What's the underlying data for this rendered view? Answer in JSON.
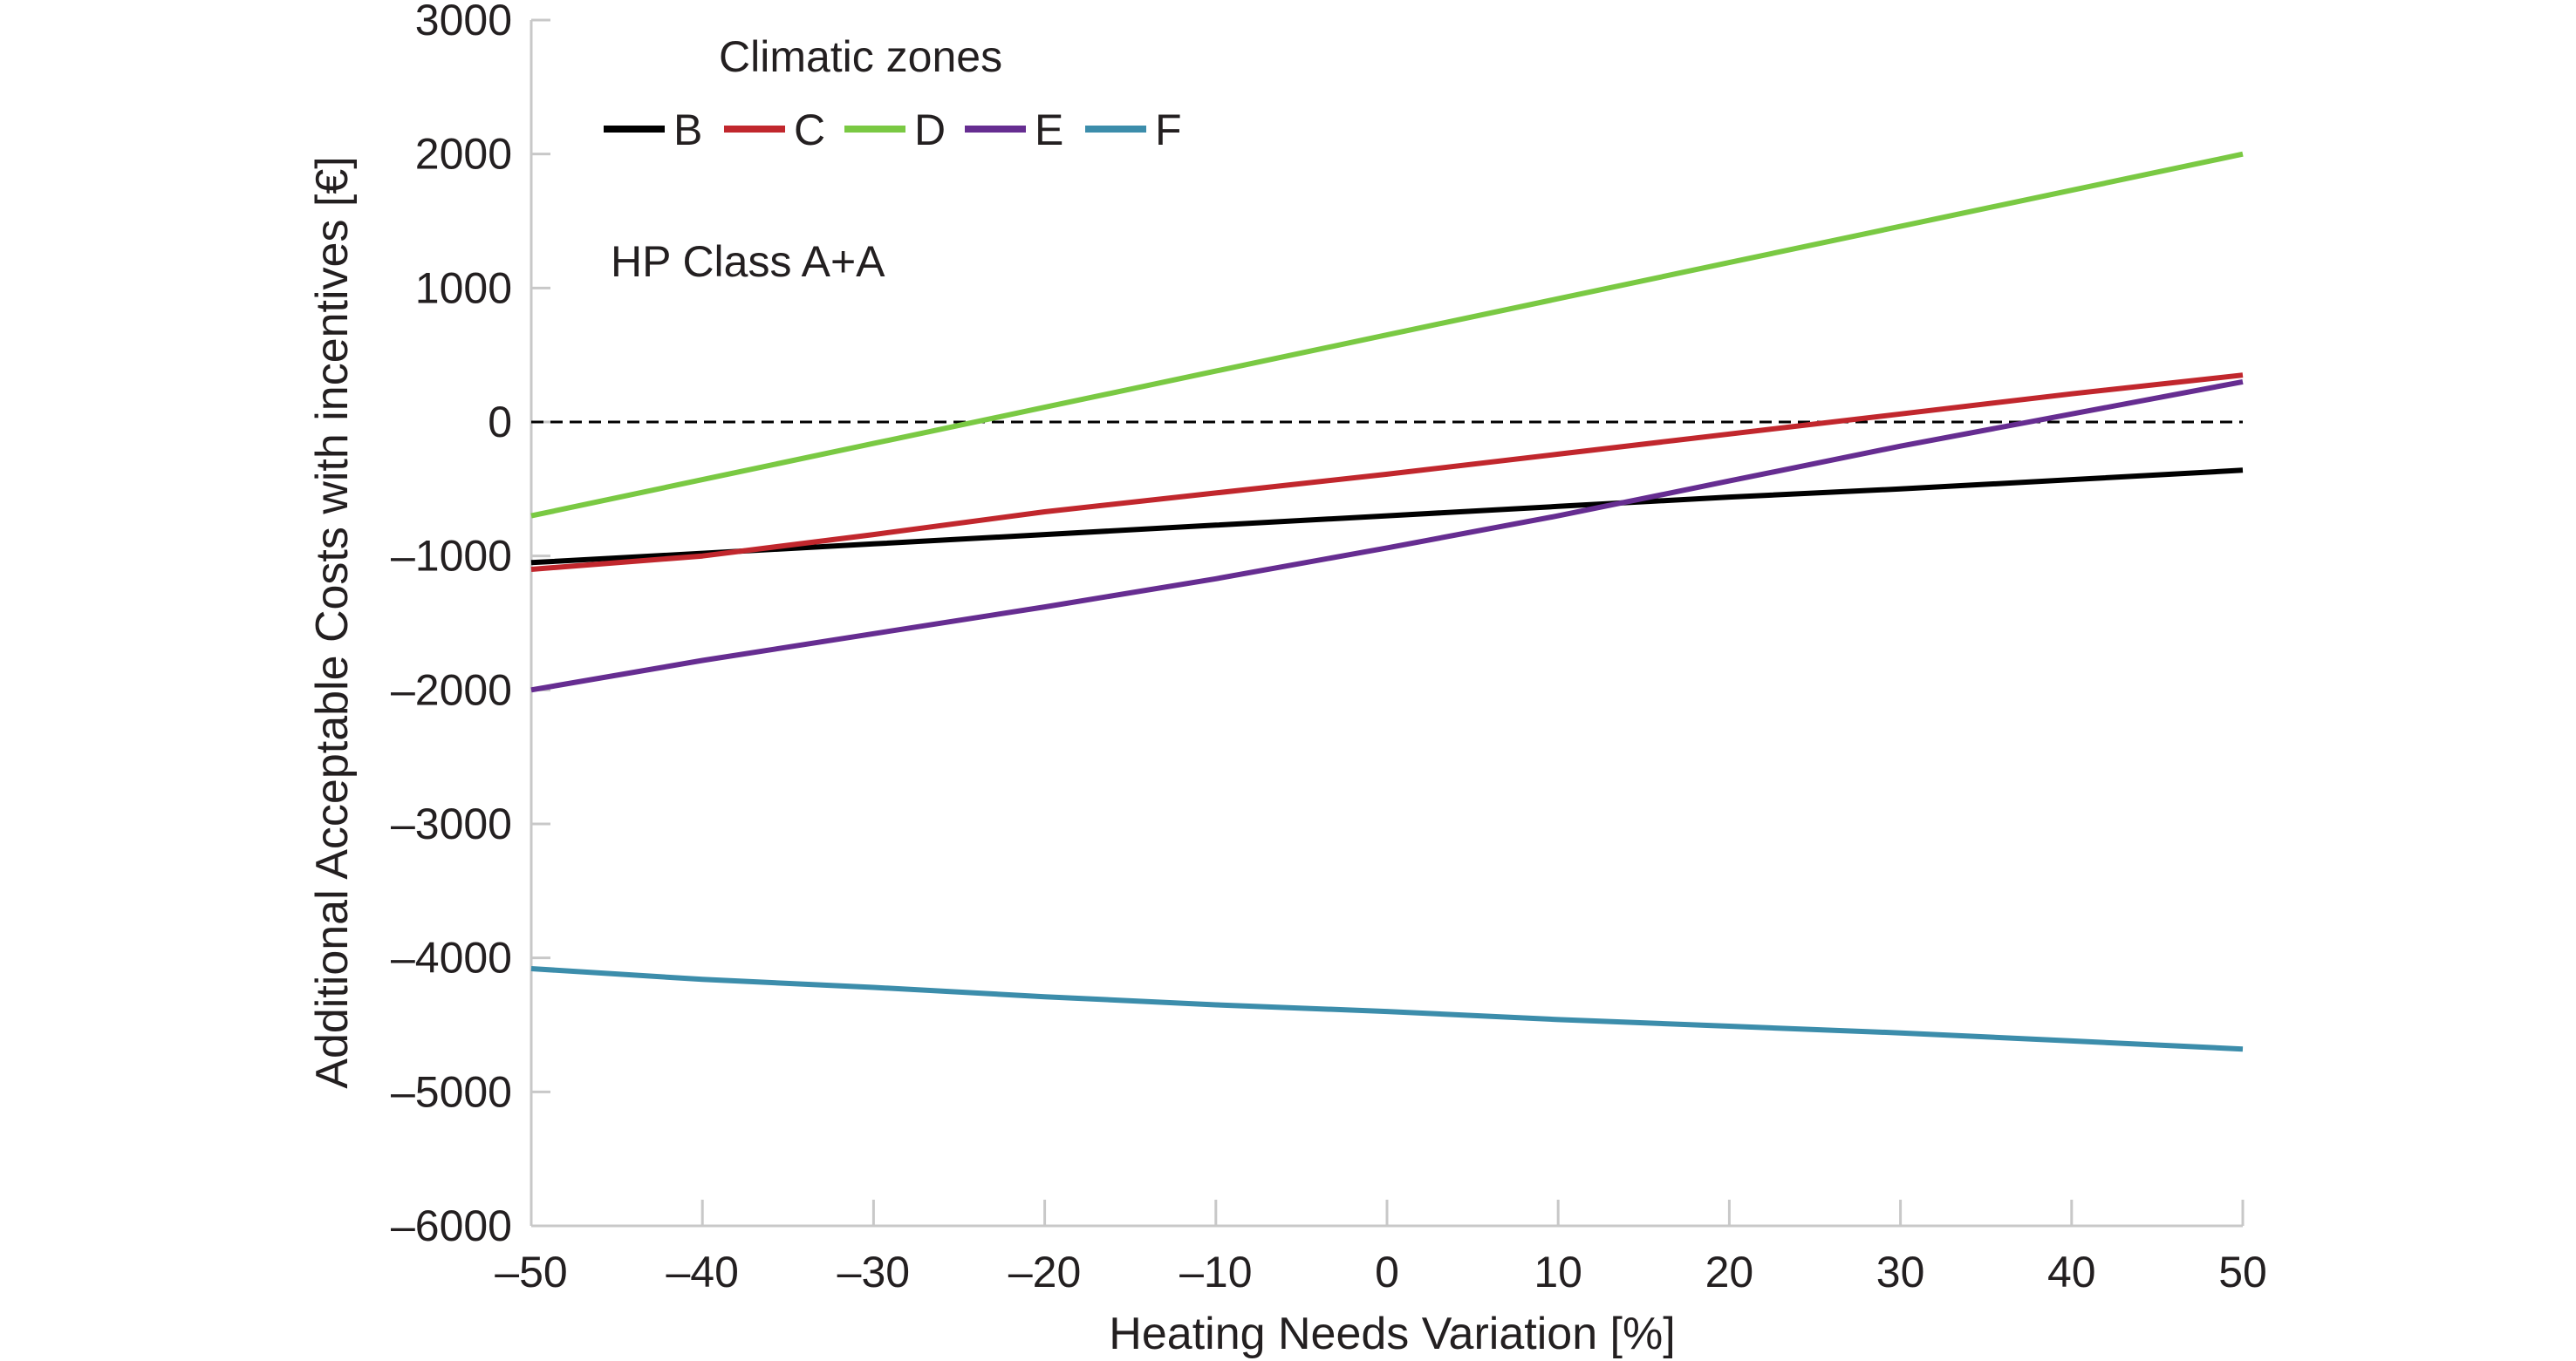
{
  "chart_data": {
    "type": "line",
    "title": "",
    "xlabel": "Heating Needs Variation [%]",
    "ylabel": "Additional Acceptable Costs with incentives [€]",
    "xlim": [
      -50,
      50
    ],
    "ylim": [
      -6000,
      3000
    ],
    "xticks": [
      -50,
      -40,
      -30,
      -20,
      -10,
      0,
      10,
      20,
      30,
      40,
      50
    ],
    "xtick_labels": [
      "–50",
      "–40",
      "–30",
      "–20",
      "–10",
      "0",
      "10",
      "20",
      "30",
      "40",
      "50"
    ],
    "yticks": [
      3000,
      2000,
      1000,
      0,
      -1000,
      -2000,
      -3000,
      -4000,
      -5000,
      -6000
    ],
    "ytick_labels": [
      "3000",
      "2000",
      "1000",
      "0",
      "–1000",
      "–2000",
      "–3000",
      "–4000",
      "–5000",
      "–6000"
    ],
    "grid": false,
    "legend": {
      "title": "Climatic zones",
      "placement": "top-left",
      "orientation": "horizontal"
    },
    "annotations": [
      {
        "text": "HP Class A+A",
        "placement": "top-left"
      }
    ],
    "reference_line": {
      "y": 0,
      "style": "dashed",
      "color": "#000000"
    },
    "x": [
      -50,
      -40,
      -30,
      -20,
      -10,
      0,
      10,
      20,
      30,
      40,
      50
    ],
    "series": [
      {
        "name": "B",
        "color": "#000000",
        "values": [
          -1050,
          -980,
          -910,
          -840,
          -770,
          -700,
          -630,
          -560,
          -500,
          -430,
          -360
        ]
      },
      {
        "name": "C",
        "color": "#c1272d",
        "values": [
          -1100,
          -1000,
          -840,
          -670,
          -530,
          -390,
          -240,
          -90,
          60,
          210,
          350
        ]
      },
      {
        "name": "D",
        "color": "#7ac943",
        "values": [
          -700,
          -430,
          -160,
          110,
          380,
          650,
          920,
          1190,
          1460,
          1730,
          2000
        ]
      },
      {
        "name": "E",
        "color": "#662d91",
        "values": [
          -2000,
          -1780,
          -1580,
          -1380,
          -1170,
          -940,
          -700,
          -440,
          -180,
          60,
          300
        ]
      },
      {
        "name": "F",
        "color": "#3c8dab",
        "values": [
          -4080,
          -4160,
          -4220,
          -4290,
          -4350,
          -4400,
          -4460,
          -4510,
          -4560,
          -4620,
          -4680
        ]
      }
    ]
  }
}
